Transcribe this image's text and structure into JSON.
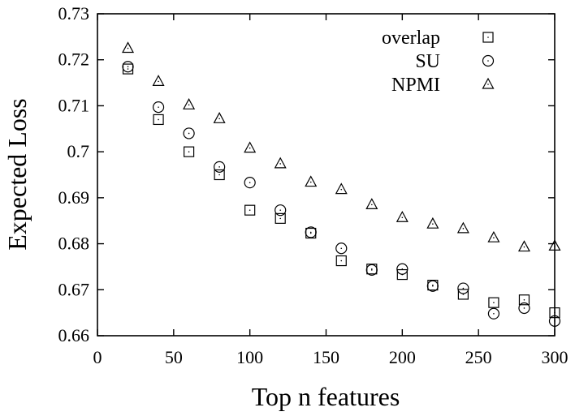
{
  "chart_data": {
    "type": "scatter",
    "xlabel": "Top n features",
    "ylabel": "Expected Loss",
    "xlim": [
      0,
      300
    ],
    "ylim": [
      0.66,
      0.73
    ],
    "x_ticks": [
      0,
      50,
      100,
      150,
      200,
      250,
      300
    ],
    "y_ticks": [
      0.66,
      0.67,
      0.68,
      0.69,
      0.7,
      0.71,
      0.72,
      0.73
    ],
    "y_tick_labels": [
      "0.66",
      "0.67",
      "0.68",
      "0.69",
      "0.7",
      "0.71",
      "0.72",
      "0.73"
    ],
    "grid": false,
    "legend_position": "top-right",
    "x": [
      20,
      40,
      60,
      80,
      100,
      120,
      140,
      160,
      180,
      200,
      220,
      240,
      260,
      280,
      300
    ],
    "series": [
      {
        "name": "overlap",
        "marker": "square",
        "values": [
          0.718,
          0.707,
          0.7,
          0.695,
          0.6873,
          0.6855,
          0.6823,
          0.6763,
          0.6745,
          0.6733,
          0.671,
          0.669,
          0.6672,
          0.6678,
          0.665
        ]
      },
      {
        "name": "SU",
        "marker": "circle",
        "values": [
          0.7185,
          0.7097,
          0.704,
          0.6967,
          0.6933,
          0.6873,
          0.6825,
          0.679,
          0.6743,
          0.6745,
          0.6708,
          0.6703,
          0.6648,
          0.666,
          0.6632
        ]
      },
      {
        "name": "NPMI",
        "marker": "triangle",
        "values": [
          0.7225,
          0.7153,
          0.7102,
          0.7072,
          0.7008,
          0.6974,
          0.6934,
          0.6918,
          0.6885,
          0.6857,
          0.6843,
          0.6833,
          0.6813,
          0.6793,
          0.6795
        ]
      }
    ]
  }
}
